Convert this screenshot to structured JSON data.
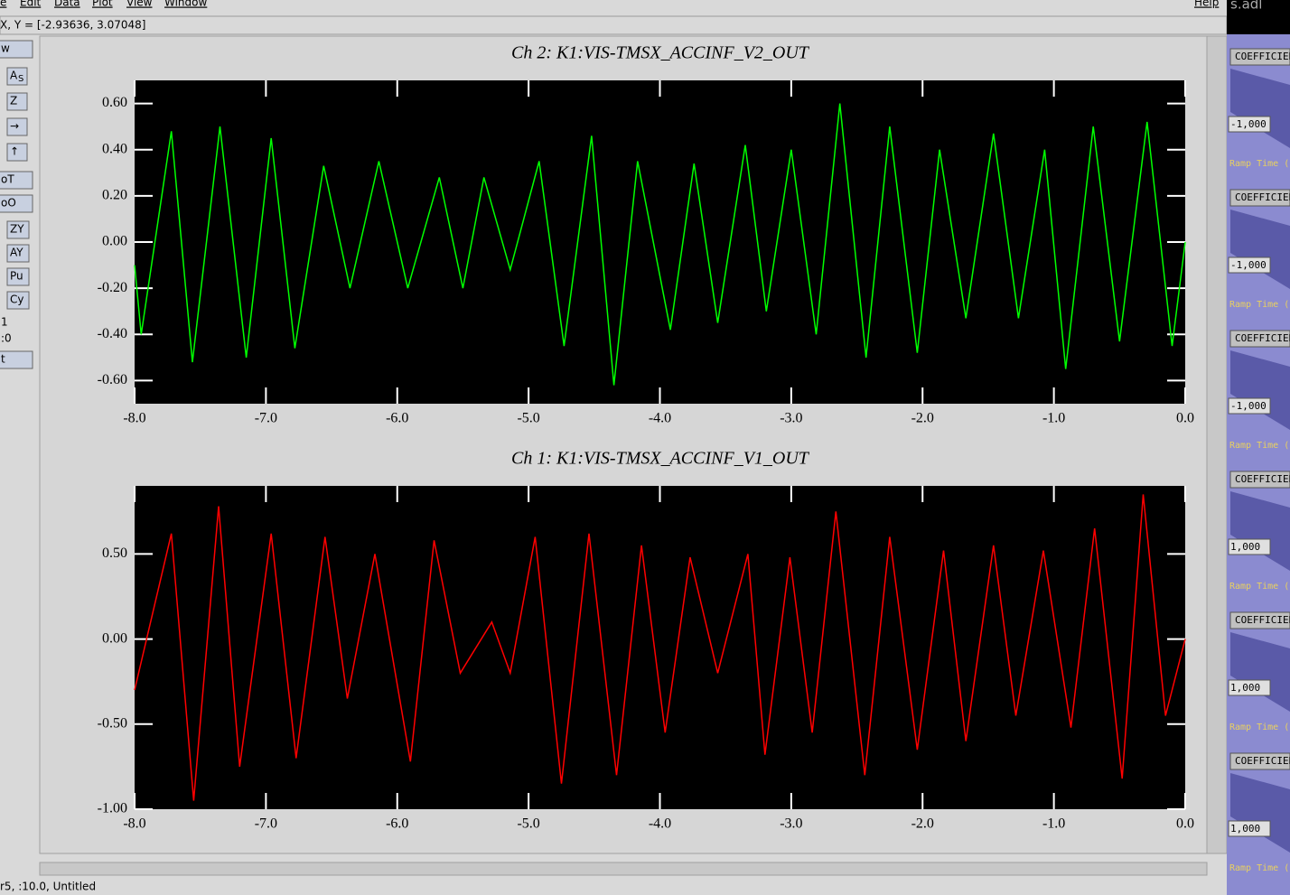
{
  "menu": [
    "e",
    "Edit",
    "Data",
    "Plot",
    "View",
    "Window",
    "Help"
  ],
  "coords": "X, Y = [-2.93636, 3.07048]",
  "toolbar": [
    "w",
    "A",
    "S",
    "Z",
    "→",
    "↑",
    "oT",
    "oO",
    "ZY",
    "AY",
    "Pu",
    "Cy",
    "1",
    ":0",
    "t"
  ],
  "status": "r5, :10.0, Untitled",
  "right_panel": {
    "title": "s.adl",
    "items": [
      {
        "button": "COEFFICIEN",
        "value": "-1,000",
        "ramp": "Ramp Time (s"
      },
      {
        "button": "COEFFICIEN",
        "value": "-1,000",
        "ramp": "Ramp Time (s"
      },
      {
        "button": "COEFFICIEN",
        "value": "-1,000",
        "ramp": "Ramp Time (s"
      },
      {
        "button": "COEFFICIEN",
        "value": "1,000",
        "ramp": "Ramp Time (s"
      },
      {
        "button": "COEFFICIEN",
        "value": "1,000",
        "ramp": "Ramp Time (s"
      },
      {
        "button": "COEFFICIEN",
        "value": "1,000",
        "ramp": "Ramp Time (s"
      }
    ]
  },
  "chart_data": [
    {
      "type": "line",
      "title": "Ch 2:  K1:VIS-TMSX_ACCINF_V2_OUT",
      "xlim": [
        -8.0,
        0.0
      ],
      "ylim": [
        -0.7,
        0.7
      ],
      "xticks": [
        {
          "value": -8,
          "label": "-8.0"
        },
        {
          "value": -7,
          "label": "-7.0"
        },
        {
          "value": -6,
          "label": "-6.0"
        },
        {
          "value": -5,
          "label": "-5.0"
        },
        {
          "value": -4,
          "label": "-4.0"
        },
        {
          "value": -3,
          "label": "-3.0"
        },
        {
          "value": -2,
          "label": "-2.0"
        },
        {
          "value": -1,
          "label": "-1.0"
        },
        {
          "value": 0,
          "label": "0.0"
        }
      ],
      "yticks": [
        {
          "value": 0.6,
          "label": "0.60"
        },
        {
          "value": 0.4,
          "label": "0.40"
        },
        {
          "value": 0.2,
          "label": "0.20"
        },
        {
          "value": 0,
          "label": "0.00"
        },
        {
          "value": -0.2,
          "label": "-0.20"
        },
        {
          "value": -0.4,
          "label": "-0.40"
        },
        {
          "value": -0.6,
          "label": "-0.60"
        }
      ],
      "x": [
        -8.0,
        -7.95,
        -7.72,
        -7.56,
        -7.35,
        -7.15,
        -6.96,
        -6.78,
        -6.56,
        -6.36,
        -6.14,
        -5.92,
        -5.68,
        -5.5,
        -5.34,
        -5.14,
        -4.92,
        -4.73,
        -4.52,
        -4.35,
        -4.17,
        -3.92,
        -3.74,
        -3.56,
        -3.35,
        -3.19,
        -3.0,
        -2.81,
        -2.63,
        -2.43,
        -2.25,
        -2.04,
        -1.87,
        -1.67,
        -1.46,
        -1.27,
        -1.07,
        -0.91,
        -0.7,
        -0.5,
        -0.29,
        -0.1,
        0.0
      ],
      "series": [
        {
          "name": "Ch 2",
          "color": "#00ff00",
          "values": [
            -0.1,
            -0.4,
            0.48,
            -0.52,
            0.5,
            -0.5,
            0.45,
            -0.46,
            0.33,
            -0.2,
            0.35,
            -0.2,
            0.28,
            -0.2,
            0.28,
            -0.12,
            0.35,
            -0.45,
            0.46,
            -0.62,
            0.35,
            -0.38,
            0.34,
            -0.35,
            0.42,
            -0.3,
            0.4,
            -0.4,
            0.6,
            -0.5,
            0.5,
            -0.48,
            0.4,
            -0.33,
            0.47,
            -0.33,
            0.4,
            -0.55,
            0.5,
            -0.43,
            0.52,
            -0.45,
            0.0
          ]
        }
      ]
    },
    {
      "type": "line",
      "title": "Ch 1:  K1:VIS-TMSX_ACCINF_V1_OUT",
      "xlim": [
        -8.0,
        0.0
      ],
      "ylim": [
        -1.0,
        0.9
      ],
      "xticks": [
        {
          "value": -8,
          "label": "-8.0"
        },
        {
          "value": -7,
          "label": "-7.0"
        },
        {
          "value": -6,
          "label": "-6.0"
        },
        {
          "value": -5,
          "label": "-5.0"
        },
        {
          "value": -4,
          "label": "-4.0"
        },
        {
          "value": -3,
          "label": "-3.0"
        },
        {
          "value": -2,
          "label": "-2.0"
        },
        {
          "value": -1,
          "label": "-1.0"
        },
        {
          "value": 0,
          "label": "0.0"
        }
      ],
      "yticks": [
        {
          "value": 0.5,
          "label": "0.50"
        },
        {
          "value": 0,
          "label": "0.00"
        },
        {
          "value": -0.5,
          "label": "-0.50"
        },
        {
          "value": -1,
          "label": "-1.00"
        }
      ],
      "x": [
        -8.0,
        -7.72,
        -7.55,
        -7.36,
        -7.2,
        -6.96,
        -6.77,
        -6.55,
        -6.38,
        -6.17,
        -5.9,
        -5.72,
        -5.52,
        -5.28,
        -5.14,
        -4.95,
        -4.75,
        -4.54,
        -4.33,
        -4.14,
        -3.96,
        -3.77,
        -3.56,
        -3.33,
        -3.2,
        -3.01,
        -2.84,
        -2.66,
        -2.44,
        -2.25,
        -2.04,
        -1.84,
        -1.67,
        -1.46,
        -1.29,
        -1.08,
        -0.87,
        -0.69,
        -0.48,
        -0.32,
        -0.15,
        0.0
      ],
      "series": [
        {
          "name": "Ch 1",
          "color": "#ff0000",
          "values": [
            -0.3,
            0.62,
            -0.95,
            0.78,
            -0.75,
            0.62,
            -0.7,
            0.6,
            -0.35,
            0.5,
            -0.72,
            0.58,
            -0.2,
            0.1,
            -0.2,
            0.6,
            -0.85,
            0.62,
            -0.8,
            0.55,
            -0.55,
            0.48,
            -0.2,
            0.5,
            -0.68,
            0.48,
            -0.55,
            0.75,
            -0.8,
            0.6,
            -0.65,
            0.52,
            -0.6,
            0.55,
            -0.45,
            0.52,
            -0.52,
            0.65,
            -0.82,
            0.85,
            -0.45,
            0.0
          ]
        }
      ]
    }
  ]
}
